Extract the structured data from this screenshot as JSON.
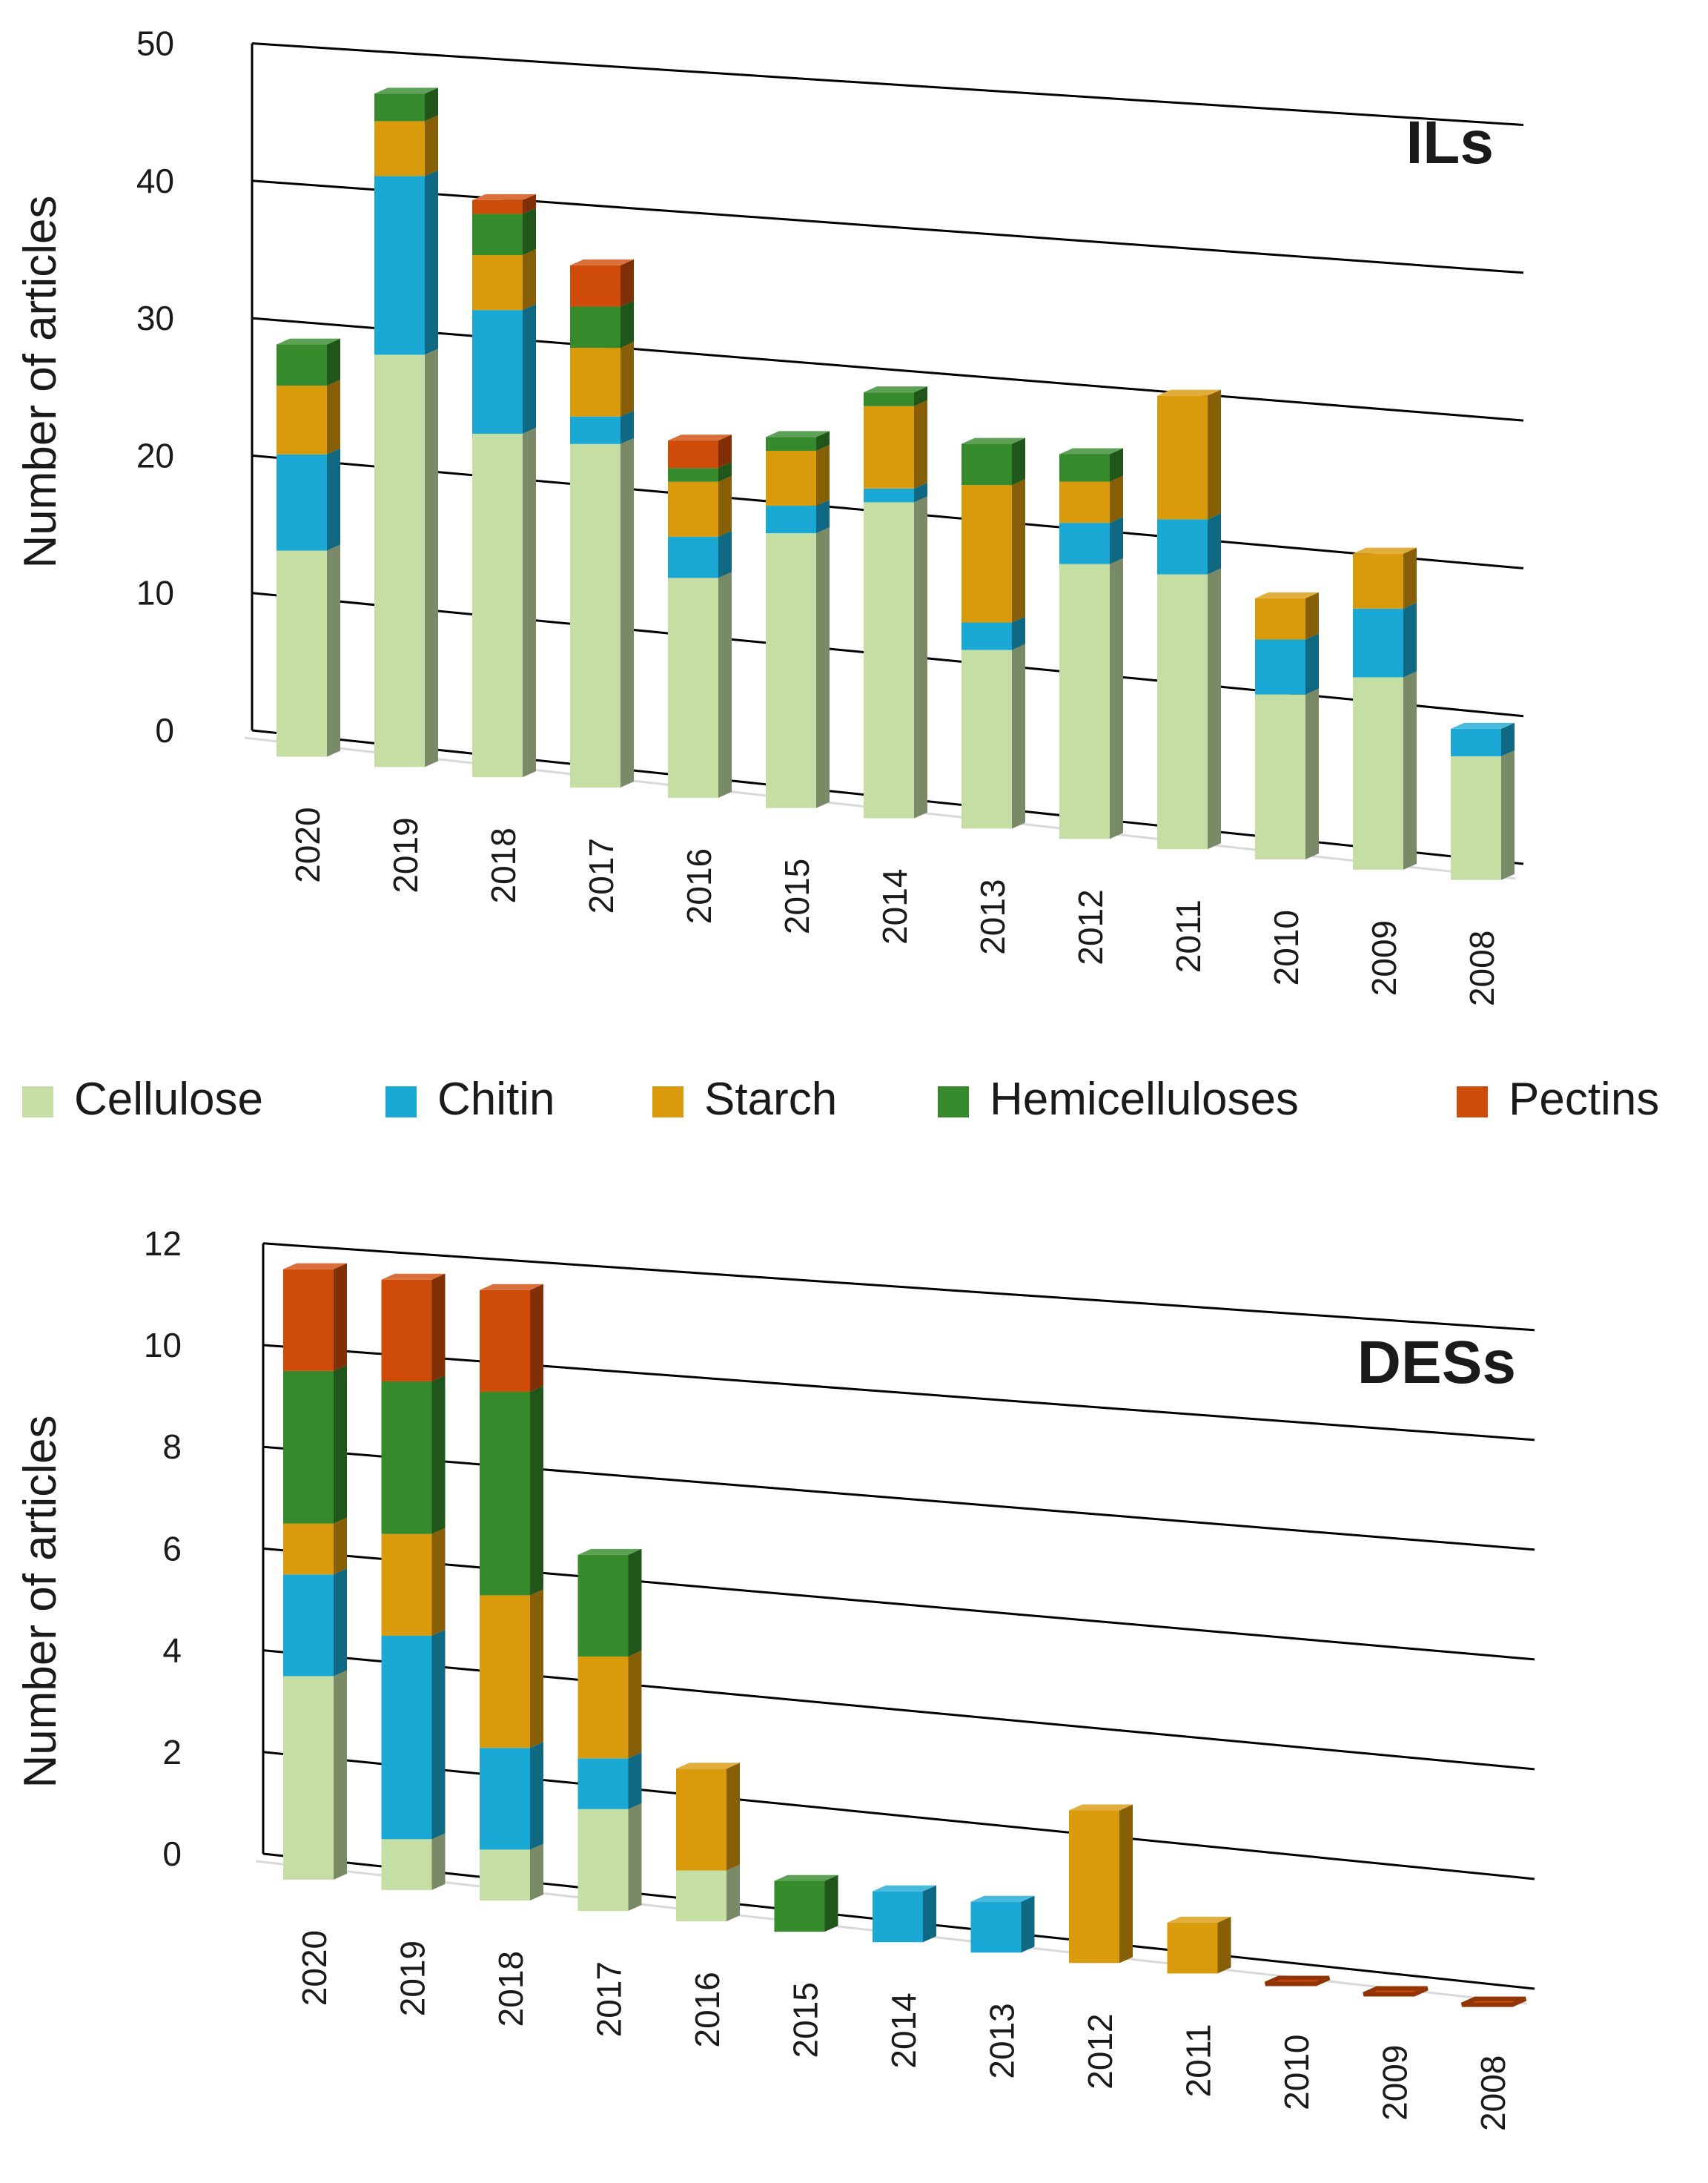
{
  "colors": {
    "cellulose": "#c4dea4",
    "chitin": "#1aa9d4",
    "starch": "#d99a0c",
    "hemicelluloses": "#358a2c",
    "pectins": "#cf4b0a",
    "axis": "#000000"
  },
  "legend": {
    "items": [
      {
        "key": "cellulose",
        "label": "Cellulose"
      },
      {
        "key": "chitin",
        "label": "Chitin"
      },
      {
        "key": "starch",
        "label": "Starch"
      },
      {
        "key": "hemicelluloses",
        "label": "Hemicelluloses"
      },
      {
        "key": "pectins",
        "label": "Pectins"
      }
    ]
  },
  "chart_data": [
    {
      "type": "bar",
      "stacked": true,
      "title": "ILs",
      "ylabel": "Number of articles",
      "xlabel": "",
      "ylim": [
        0,
        50
      ],
      "yticks": [
        "0",
        "10",
        "20",
        "30",
        "40",
        "50"
      ],
      "categories": [
        "2020",
        "2019",
        "2018",
        "2017",
        "2016",
        "2015",
        "2014",
        "2013",
        "2012",
        "2011",
        "2010",
        "2009",
        "2008"
      ],
      "series": [
        {
          "name": "Cellulose",
          "key": "cellulose",
          "values": [
            15,
            30,
            25,
            25,
            16,
            20,
            23,
            13,
            20,
            20,
            12,
            14,
            9
          ]
        },
        {
          "name": "Chitin",
          "key": "chitin",
          "values": [
            7,
            13,
            9,
            2,
            3,
            2,
            1,
            2,
            3,
            4,
            4,
            5,
            2
          ]
        },
        {
          "name": "Starch",
          "key": "starch",
          "values": [
            5,
            4,
            4,
            5,
            4,
            4,
            6,
            10,
            3,
            9,
            3,
            4,
            0
          ]
        },
        {
          "name": "Hemicelluloses",
          "key": "hemicelluloses",
          "values": [
            3,
            2,
            3,
            3,
            1,
            1,
            1,
            3,
            2,
            0,
            0,
            0,
            0
          ]
        },
        {
          "name": "Pectins",
          "key": "pectins",
          "values": [
            0,
            0,
            1,
            3,
            2,
            0,
            0,
            0,
            0,
            0,
            0,
            0,
            0
          ]
        }
      ]
    },
    {
      "type": "bar",
      "stacked": true,
      "title": "DESs",
      "ylabel": "Number of articles",
      "xlabel": "",
      "ylim": [
        0,
        12
      ],
      "yticks": [
        "0",
        "2",
        "4",
        "6",
        "8",
        "10",
        "12"
      ],
      "categories": [
        "2020",
        "2019",
        "2018",
        "2017",
        "2016",
        "2015",
        "2014",
        "2013",
        "2012",
        "2011",
        "2010",
        "2009",
        "2008"
      ],
      "series": [
        {
          "name": "Cellulose",
          "key": "cellulose",
          "values": [
            4,
            1,
            1,
            2,
            1,
            0,
            0,
            0,
            0,
            0,
            0,
            0,
            0
          ]
        },
        {
          "name": "Chitin",
          "key": "chitin",
          "values": [
            2,
            4,
            2,
            1,
            0,
            0,
            1,
            1,
            0,
            0,
            0,
            0,
            0
          ]
        },
        {
          "name": "Starch",
          "key": "starch",
          "values": [
            1,
            2,
            3,
            2,
            2,
            0,
            0,
            0,
            3,
            1,
            0,
            0,
            0
          ]
        },
        {
          "name": "Hemicelluloses",
          "key": "hemicelluloses",
          "values": [
            3,
            3,
            4,
            2,
            0,
            1,
            0,
            0,
            0,
            0,
            0,
            0,
            0
          ]
        },
        {
          "name": "Pectins",
          "key": "pectins",
          "values": [
            2,
            2,
            2,
            0,
            0,
            0,
            0,
            0,
            0,
            0,
            0,
            0,
            0
          ]
        }
      ]
    }
  ]
}
